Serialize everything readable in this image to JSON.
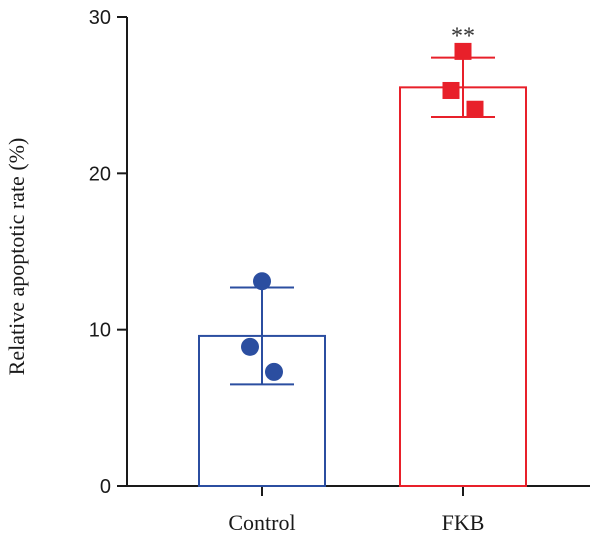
{
  "chart_data": {
    "type": "bar",
    "categories": [
      "Control",
      "FKB"
    ],
    "values": [
      9.6,
      25.5
    ],
    "error": [
      3.1,
      1.9
    ],
    "points": [
      [
        13.1,
        8.9,
        7.3
      ],
      [
        27.8,
        25.3,
        24.1
      ]
    ],
    "marker_shapes": [
      "circle",
      "square"
    ],
    "colors": [
      "#2b4ea0",
      "#e8202a"
    ],
    "significance": [
      "",
      "**"
    ],
    "ylabel": "Relative apoptotic rate (%)",
    "xlabel": "",
    "ylim": [
      0,
      30
    ],
    "yticks": [
      0,
      10,
      20,
      30
    ],
    "grid": false,
    "legend": "none"
  }
}
